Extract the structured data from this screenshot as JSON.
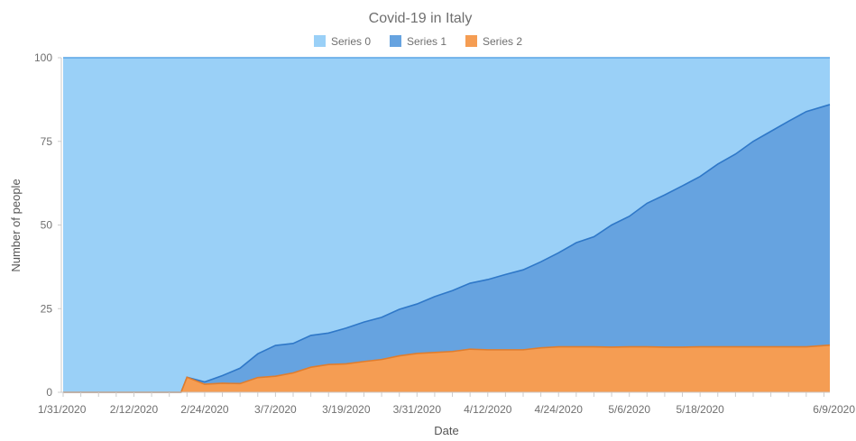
{
  "chart_data": {
    "type": "area",
    "stacking": "percent",
    "title": "Covid-19 in Italy",
    "xlabel": "Date",
    "ylabel": "Number of people",
    "ylim": [
      0,
      100
    ],
    "y_ticks": [
      "0",
      "25",
      "50",
      "75",
      "100"
    ],
    "x_tick_labels": [
      "1/31/2020",
      "2/12/2020",
      "2/24/2020",
      "3/7/2020",
      "3/19/2020",
      "3/31/2020",
      "4/12/2020",
      "4/24/2020",
      "5/6/2020",
      "5/18/2020",
      "6/9/2020"
    ],
    "legend_position": "top-center",
    "grid": false,
    "x": [
      "1/31/2020",
      "2/20/2020",
      "2/21/2020",
      "2/24/2020",
      "2/27/2020",
      "3/1/2020",
      "3/4/2020",
      "3/7/2020",
      "3/10/2020",
      "3/13/2020",
      "3/16/2020",
      "3/19/2020",
      "3/22/2020",
      "3/25/2020",
      "3/28/2020",
      "3/31/2020",
      "4/3/2020",
      "4/6/2020",
      "4/9/2020",
      "4/12/2020",
      "4/15/2020",
      "4/18/2020",
      "4/21/2020",
      "4/24/2020",
      "4/27/2020",
      "4/30/2020",
      "5/3/2020",
      "5/6/2020",
      "5/9/2020",
      "5/12/2020",
      "5/15/2020",
      "5/18/2020",
      "5/21/2020",
      "5/24/2020",
      "5/27/2020",
      "5/30/2020",
      "6/2/2020",
      "6/5/2020",
      "6/9/2020"
    ],
    "series": [
      {
        "name": "Series 0",
        "color": "#9ad0f7",
        "values": [
          100,
          100,
          95.5,
          96.9,
          95.0,
          92.8,
          88.5,
          86.0,
          85.4,
          83.0,
          82.3,
          80.8,
          79.0,
          77.6,
          75.2,
          73.6,
          71.4,
          69.6,
          67.4,
          66.3,
          64.8,
          63.4,
          61.0,
          58.3,
          55.3,
          53.5,
          50.0,
          47.4,
          43.5,
          41.0,
          38.3,
          35.5,
          31.8,
          28.8,
          25.0,
          22.0,
          19.0,
          16.1,
          14.0
        ]
      },
      {
        "name": "Series 1",
        "color": "#66a3e0",
        "values": [
          0,
          0,
          0,
          0.7,
          2.3,
          4.6,
          7.1,
          9.2,
          8.8,
          9.5,
          9.4,
          10.7,
          11.8,
          12.6,
          13.9,
          14.8,
          16.7,
          18.2,
          19.7,
          21.0,
          22.5,
          23.9,
          25.7,
          28.1,
          31.1,
          32.9,
          36.5,
          39.0,
          42.9,
          45.5,
          48.2,
          50.9,
          54.6,
          57.6,
          61.4,
          64.4,
          67.4,
          70.3,
          71.9
        ]
      },
      {
        "name": "Series 2",
        "color": "#f59d53",
        "values": [
          0,
          0,
          4.5,
          2.4,
          2.7,
          2.6,
          4.4,
          4.8,
          5.8,
          7.5,
          8.3,
          8.5,
          9.2,
          9.8,
          10.9,
          11.6,
          11.9,
          12.2,
          12.9,
          12.7,
          12.7,
          12.7,
          13.3,
          13.6,
          13.6,
          13.6,
          13.5,
          13.6,
          13.6,
          13.5,
          13.5,
          13.6,
          13.6,
          13.6,
          13.6,
          13.6,
          13.6,
          13.6,
          14.1
        ]
      }
    ]
  }
}
